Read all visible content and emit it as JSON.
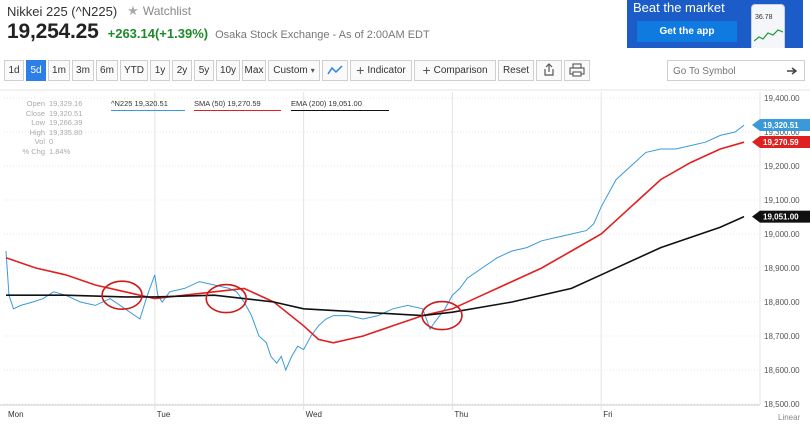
{
  "header": {
    "title": "Nikkei 225 (^N225)",
    "watchlist_label": "Watchlist",
    "price": "19,254.25",
    "change": "+263.14(+1.39%)",
    "exchange_info": "Osaka Stock Exchange - As of 2:00AM EDT"
  },
  "ad": {
    "title": "Beat the market",
    "button": "Get the app",
    "phone_value": "36.78"
  },
  "toolbar": {
    "ranges": [
      "1d",
      "5d",
      "1m",
      "3m",
      "6m",
      "YTD",
      "1y",
      "2y",
      "5y",
      "10y",
      "Max"
    ],
    "active_range": "5d",
    "custom_label": "Custom",
    "indicator_label": "Indicator",
    "comparison_label": "Comparison",
    "reset_label": "Reset",
    "search_placeholder": "Go To Symbol"
  },
  "stats": [
    {
      "label": "Open",
      "value": "19,329.16"
    },
    {
      "label": "Close",
      "value": "19,320.51"
    },
    {
      "label": "Low",
      "value": "19,266.39"
    },
    {
      "label": "High",
      "value": "19,335.80"
    },
    {
      "label": "Vol",
      "value": "0"
    },
    {
      "label": "% Chg",
      "value": "1.84%"
    }
  ],
  "legend": {
    "price": "^N225 19,320.51",
    "sma": "SMA (50) 19,270.59",
    "ema": "EMA (200) 19,051.00"
  },
  "colors": {
    "price": "#3a9ad9",
    "sma": "#e02020",
    "ema": "#111111",
    "active": "#2c7fe8",
    "positive": "#1d8a2a"
  },
  "chart_data": {
    "type": "line",
    "ylim": [
      18500,
      19400
    ],
    "y_ticks": [
      "19,400.00",
      "19,300.00",
      "19,200.00",
      "19,100.00",
      "19,000.00",
      "18,900.00",
      "18,800.00",
      "18,700.00",
      "18,600.00",
      "18,500.00"
    ],
    "x_labels": [
      "Mon",
      "Tue",
      "Wed",
      "Thu",
      "Fri"
    ],
    "scale_label": "Linear",
    "last_values": {
      "price": "19,320.51",
      "sma": "19,270.59",
      "ema": "19,051.00"
    },
    "series": [
      {
        "name": "^N225",
        "color": "#3a9ad9",
        "points": [
          [
            0.0,
            18950
          ],
          [
            0.02,
            18820
          ],
          [
            0.05,
            18780
          ],
          [
            0.1,
            18790
          ],
          [
            0.18,
            18800
          ],
          [
            0.25,
            18810
          ],
          [
            0.32,
            18830
          ],
          [
            0.4,
            18820
          ],
          [
            0.5,
            18800
          ],
          [
            0.6,
            18790
          ],
          [
            0.7,
            18810
          ],
          [
            0.8,
            18780
          ],
          [
            0.9,
            18750
          ],
          [
            0.95,
            18820
          ],
          [
            1.0,
            18880
          ],
          [
            1.02,
            18820
          ],
          [
            1.05,
            18800
          ],
          [
            1.1,
            18830
          ],
          [
            1.2,
            18840
          ],
          [
            1.3,
            18860
          ],
          [
            1.4,
            18850
          ],
          [
            1.5,
            18840
          ],
          [
            1.55,
            18830
          ],
          [
            1.6,
            18800
          ],
          [
            1.65,
            18760
          ],
          [
            1.7,
            18700
          ],
          [
            1.75,
            18680
          ],
          [
            1.78,
            18640
          ],
          [
            1.82,
            18620
          ],
          [
            1.85,
            18640
          ],
          [
            1.88,
            18600
          ],
          [
            1.92,
            18640
          ],
          [
            1.96,
            18670
          ],
          [
            2.0,
            18660
          ],
          [
            2.05,
            18700
          ],
          [
            2.1,
            18730
          ],
          [
            2.15,
            18750
          ],
          [
            2.2,
            18760
          ],
          [
            2.3,
            18760
          ],
          [
            2.4,
            18750
          ],
          [
            2.5,
            18760
          ],
          [
            2.6,
            18780
          ],
          [
            2.7,
            18790
          ],
          [
            2.8,
            18780
          ],
          [
            2.85,
            18720
          ],
          [
            2.88,
            18740
          ],
          [
            2.95,
            18780
          ],
          [
            3.0,
            18820
          ],
          [
            3.05,
            18840
          ],
          [
            3.1,
            18870
          ],
          [
            3.2,
            18900
          ],
          [
            3.3,
            18930
          ],
          [
            3.4,
            18950
          ],
          [
            3.5,
            18960
          ],
          [
            3.6,
            18980
          ],
          [
            3.7,
            18990
          ],
          [
            3.8,
            19000
          ],
          [
            3.9,
            19010
          ],
          [
            3.95,
            19030
          ],
          [
            4.0,
            19080
          ],
          [
            4.05,
            19120
          ],
          [
            4.1,
            19160
          ],
          [
            4.2,
            19200
          ],
          [
            4.3,
            19240
          ],
          [
            4.4,
            19250
          ],
          [
            4.5,
            19250
          ],
          [
            4.6,
            19260
          ],
          [
            4.7,
            19270
          ],
          [
            4.8,
            19290
          ],
          [
            4.9,
            19300
          ],
          [
            4.96,
            19320
          ]
        ]
      },
      {
        "name": "SMA (50)",
        "color": "#e02020",
        "points": [
          [
            0.0,
            18930
          ],
          [
            0.2,
            18900
          ],
          [
            0.4,
            18880
          ],
          [
            0.6,
            18850
          ],
          [
            0.8,
            18830
          ],
          [
            1.0,
            18810
          ],
          [
            1.2,
            18820
          ],
          [
            1.4,
            18830
          ],
          [
            1.6,
            18840
          ],
          [
            1.8,
            18800
          ],
          [
            2.0,
            18730
          ],
          [
            2.1,
            18690
          ],
          [
            2.2,
            18680
          ],
          [
            2.4,
            18700
          ],
          [
            2.6,
            18730
          ],
          [
            2.8,
            18760
          ],
          [
            3.0,
            18780
          ],
          [
            3.2,
            18820
          ],
          [
            3.4,
            18860
          ],
          [
            3.6,
            18900
          ],
          [
            3.8,
            18950
          ],
          [
            4.0,
            19000
          ],
          [
            4.2,
            19080
          ],
          [
            4.4,
            19160
          ],
          [
            4.6,
            19210
          ],
          [
            4.8,
            19250
          ],
          [
            4.96,
            19270
          ]
        ]
      },
      {
        "name": "EMA (200)",
        "color": "#111111",
        "points": [
          [
            0.0,
            18820
          ],
          [
            0.4,
            18820
          ],
          [
            0.8,
            18815
          ],
          [
            1.0,
            18815
          ],
          [
            1.4,
            18820
          ],
          [
            1.8,
            18800
          ],
          [
            2.0,
            18780
          ],
          [
            2.4,
            18770
          ],
          [
            2.8,
            18760
          ],
          [
            3.0,
            18770
          ],
          [
            3.4,
            18800
          ],
          [
            3.8,
            18840
          ],
          [
            4.0,
            18880
          ],
          [
            4.4,
            18960
          ],
          [
            4.8,
            19020
          ],
          [
            4.96,
            19051
          ]
        ]
      }
    ],
    "highlight_circles": [
      [
        0.78,
        18820
      ],
      [
        1.48,
        18810
      ],
      [
        2.93,
        18760
      ]
    ]
  }
}
